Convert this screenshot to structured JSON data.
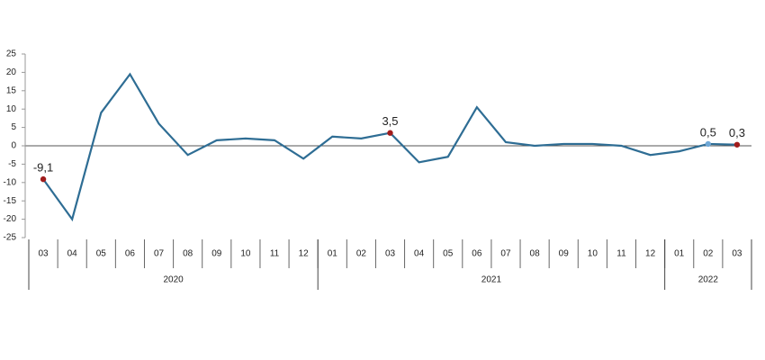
{
  "chart_data": {
    "type": "line",
    "categories": [
      "03",
      "04",
      "05",
      "06",
      "07",
      "08",
      "09",
      "10",
      "11",
      "12",
      "01",
      "02",
      "03",
      "04",
      "05",
      "06",
      "07",
      "08",
      "09",
      "10",
      "11",
      "12",
      "01",
      "02",
      "03"
    ],
    "years": [
      "2020",
      "2021",
      "2022"
    ],
    "series": [
      {
        "color": "#2e6d94",
        "values": [
          -9.1,
          -20,
          9,
          19.5,
          6,
          -2.5,
          1.5,
          2,
          1.5,
          -3.5,
          2.5,
          2,
          3.5,
          -4.5,
          -3,
          10.5,
          1,
          0,
          0.5,
          0.5,
          0,
          -2.5,
          -1.5,
          0.5,
          0.3
        ],
        "value_labels": [
          "-9,1",
          null,
          null,
          null,
          null,
          null,
          null,
          null,
          null,
          null,
          null,
          null,
          "3,5",
          null,
          null,
          null,
          null,
          null,
          null,
          null,
          null,
          null,
          null,
          "0,5",
          "0,3"
        ],
        "marker_colors": [
          "#a01c1c",
          null,
          null,
          null,
          null,
          null,
          null,
          null,
          null,
          null,
          null,
          null,
          "#a01c1c",
          null,
          null,
          null,
          null,
          null,
          null,
          null,
          null,
          null,
          null,
          "#6fa8d6",
          "#a01c1c"
        ]
      }
    ],
    "ylim": [
      -25,
      25
    ],
    "yticks": [
      -25,
      -20,
      -15,
      -10,
      -5,
      0,
      5,
      10,
      15,
      20,
      25
    ]
  }
}
